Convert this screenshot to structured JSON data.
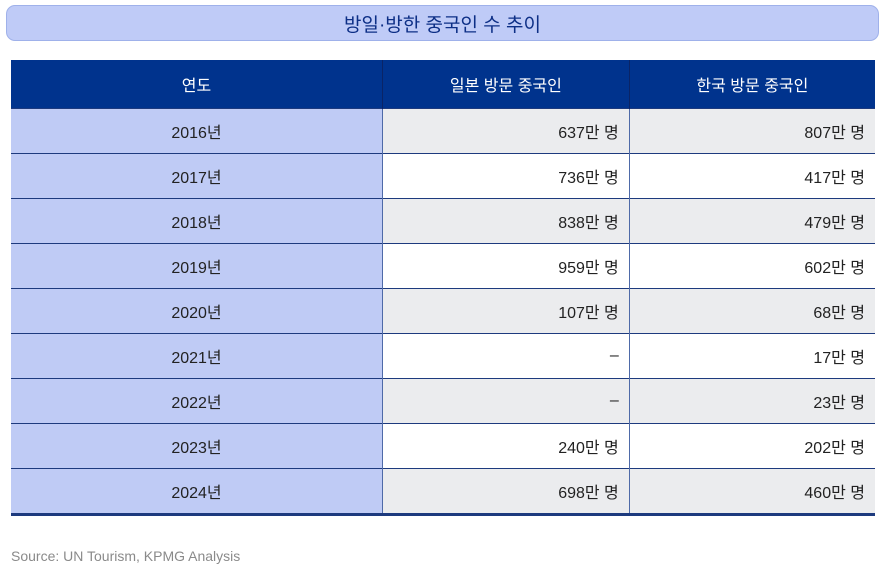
{
  "title": "방일·방한 중국인 수 추이",
  "table": {
    "headers": [
      "연도",
      "일본 방문 중국인",
      "한국 방문 중국인"
    ],
    "rows": [
      [
        "2016년",
        "637만 명",
        "807만 명"
      ],
      [
        "2017년",
        "736만 명",
        "417만 명"
      ],
      [
        "2018년",
        "838만 명",
        "479만 명"
      ],
      [
        "2019년",
        "959만 명",
        "602만 명"
      ],
      [
        "2020년",
        "107만 명",
        "68만 명"
      ],
      [
        "2021년",
        "–",
        "17만 명"
      ],
      [
        "2022년",
        "–",
        "23만 명"
      ],
      [
        "2023년",
        "240만 명",
        "202만 명"
      ],
      [
        "2024년",
        "698만 명",
        "460만 명"
      ]
    ]
  },
  "source": "Source: UN Tourism, KPMG Analysis",
  "colors": {
    "header": "#00338d",
    "year_column": "#bfcbf5",
    "title_box": "#bfcbf7",
    "alt_row": "#ebecee"
  }
}
